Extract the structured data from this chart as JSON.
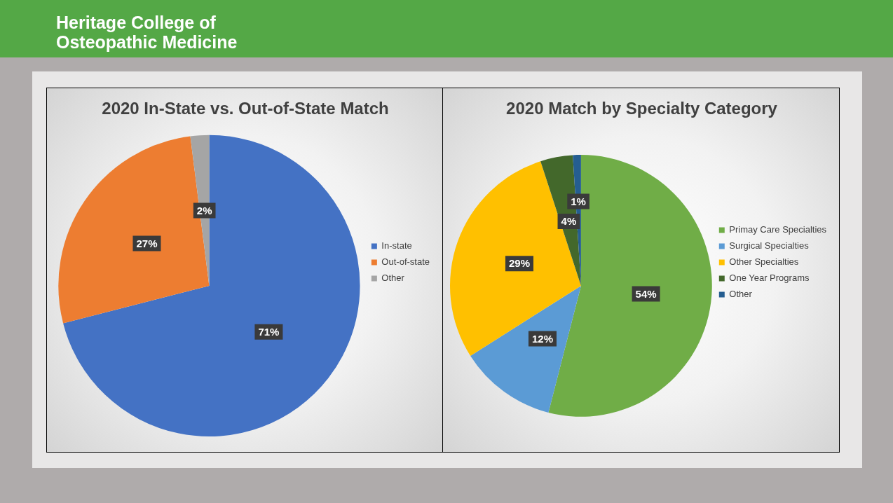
{
  "chart_data": [
    {
      "type": "pie",
      "title": "2020 In-State vs. Out-of-State Match",
      "annotations": [
        "Heritage College of Osteopathic Medicine"
      ],
      "categories": [
        "In-state",
        "Out-of-state",
        "Other"
      ],
      "values": [
        71,
        27,
        2
      ],
      "value_labels": [
        "71%",
        "27%",
        "2%"
      ],
      "colors": [
        "#4472c4",
        "#ed7d31",
        "#a5a5a5"
      ],
      "legend": "right"
    },
    {
      "type": "pie",
      "title": "2020 Match by Specialty Category",
      "categories": [
        "Primay Care Specialties",
        "Surgical Specialties",
        "Other Specialties",
        "One Year Programs",
        "Other"
      ],
      "values": [
        54,
        12,
        29,
        4,
        1
      ],
      "value_labels": [
        "54%",
        "12%",
        "29%",
        "4%",
        "1%"
      ],
      "colors": [
        "#70ad47",
        "#5b9bd5",
        "#ffc000",
        "#43682b",
        "#255e91"
      ],
      "legend": "right"
    }
  ]
}
